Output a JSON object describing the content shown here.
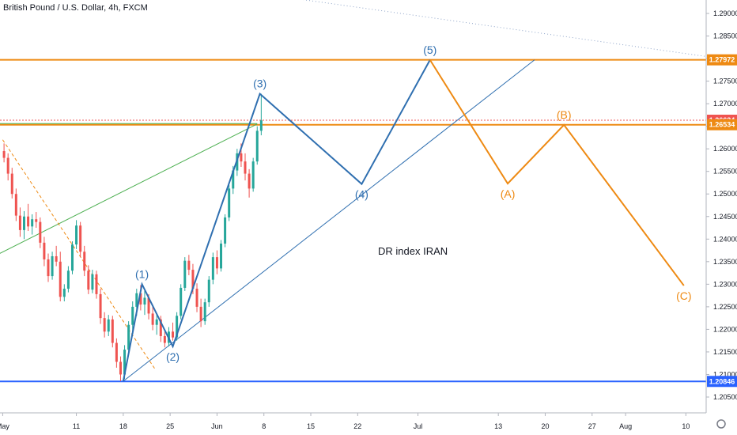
{
  "header": {
    "title": "British Pound / U.S. Dollar, 4h, FXCM"
  },
  "watermark_text": "DR index IRAN",
  "colors": {
    "up": "#26a69a",
    "down": "#ef5350",
    "blue": "#2f6fb0",
    "orange": "#ee8a13",
    "green": "#4caf50",
    "axis_text": "#131722",
    "grid": "#e0e3eb",
    "hline_blue": "#2962ff"
  },
  "chart_data": {
    "type": "line",
    "symbol": "GBPUSD",
    "timeframe": "4h",
    "ylim": [
      1.2025,
      1.293
    ],
    "y_ticks": [
      "1.29000",
      "1.28500",
      "1.28000",
      "1.27500",
      "1.27000",
      "1.26500",
      "1.26000",
      "1.25500",
      "1.25000",
      "1.24500",
      "1.24000",
      "1.23500",
      "1.23000",
      "1.22500",
      "1.22000",
      "1.21500",
      "1.21000",
      "1.20500"
    ],
    "x_ticks": [
      {
        "label": "May",
        "day": 0
      },
      {
        "label": "11",
        "day": 11
      },
      {
        "label": "18",
        "day": 18
      },
      {
        "label": "25",
        "day": 25
      },
      {
        "label": "Jun",
        "day": 32
      },
      {
        "label": "8",
        "day": 39
      },
      {
        "label": "15",
        "day": 46
      },
      {
        "label": "22",
        "day": 53
      },
      {
        "label": "Jul",
        "day": 62
      },
      {
        "label": "13",
        "day": 74
      },
      {
        "label": "20",
        "day": 81
      },
      {
        "label": "27",
        "day": 88
      },
      {
        "label": "Aug",
        "day": 93
      },
      {
        "label": "10",
        "day": 102
      }
    ],
    "price_tags": [
      {
        "label": "1.27972",
        "value": 1.27972,
        "style": "orange-fill"
      },
      {
        "label": "1.26634",
        "value": 1.26634,
        "style": "red-fill"
      },
      {
        "label": "1.26534",
        "value": 1.26534,
        "style": "orange-fill"
      },
      {
        "label": "1.20846",
        "value": 1.20846,
        "style": "blue-fill"
      }
    ],
    "horizontal_lines": [
      {
        "value": 1.27972,
        "color": "orange"
      },
      {
        "value": 1.26534,
        "color": "orange"
      },
      {
        "value": 1.20846,
        "color": "blue"
      }
    ],
    "elliott_impulse": {
      "color": "blue",
      "points": [
        {
          "label": "",
          "day": 18,
          "value": 1.2085
        },
        {
          "label": "(1)",
          "day": 20.8,
          "value": 1.23
        },
        {
          "label": "(2)",
          "day": 25.4,
          "value": 1.2162
        },
        {
          "label": "(3)",
          "day": 38.4,
          "value": 1.2722
        },
        {
          "label": "(4)",
          "day": 53.6,
          "value": 1.2522
        },
        {
          "label": "(5)",
          "day": 63.8,
          "value": 1.2797
        }
      ]
    },
    "elliott_correction": {
      "color": "orange",
      "points": [
        {
          "label": "",
          "day": 63.8,
          "value": 1.2797
        },
        {
          "label": "(A)",
          "day": 75.4,
          "value": 1.2523
        },
        {
          "label": "(B)",
          "day": 83.8,
          "value": 1.2653
        },
        {
          "label": "(C)",
          "day": 101.7,
          "value": 1.2297
        }
      ]
    },
    "trendlines": [
      {
        "color": "blue",
        "style": "solid",
        "from": {
          "day": 18,
          "value": 1.2085
        },
        "to": {
          "day": 79.4,
          "value": 1.2797
        }
      },
      {
        "color": "green",
        "style": "solid",
        "from": {
          "day": -1,
          "value": 1.2364
        },
        "to": {
          "day": 38.0,
          "value": 1.2655
        }
      },
      {
        "color": "green",
        "style": "solid",
        "from": {
          "day": -1,
          "value": 1.2656
        },
        "to": {
          "day": 38.0,
          "value": 1.2656
        }
      },
      {
        "color": "orange",
        "style": "dashed",
        "from": {
          "day": 0,
          "value": 1.262
        },
        "to": {
          "day": 22.7,
          "value": 1.2113
        }
      },
      {
        "color": "blue",
        "style": "dotted",
        "from": {
          "day": 30.8,
          "value": 1.296
        },
        "to": {
          "day": 108.7,
          "value": 1.2797
        }
      }
    ],
    "series": [
      {
        "name": "",
        "candles": [
          {
            "day": 0.2,
            "open": 1.2595,
            "high": 1.2612,
            "low": 1.257,
            "close": 1.258
          },
          {
            "day": 0.8,
            "open": 1.258,
            "high": 1.259,
            "low": 1.253,
            "close": 1.2545
          },
          {
            "day": 1.4,
            "open": 1.2545,
            "high": 1.2558,
            "low": 1.249,
            "close": 1.25
          },
          {
            "day": 2.0,
            "open": 1.25,
            "high": 1.2512,
            "low": 1.244,
            "close": 1.2452
          },
          {
            "day": 2.6,
            "open": 1.2452,
            "high": 1.247,
            "low": 1.2405,
            "close": 1.242
          },
          {
            "day": 3.2,
            "open": 1.242,
            "high": 1.2462,
            "low": 1.24,
            "close": 1.245
          },
          {
            "day": 3.8,
            "open": 1.245,
            "high": 1.2478,
            "low": 1.2418,
            "close": 1.2428
          },
          {
            "day": 4.4,
            "open": 1.2428,
            "high": 1.2455,
            "low": 1.241,
            "close": 1.2444
          },
          {
            "day": 5.0,
            "open": 1.2444,
            "high": 1.246,
            "low": 1.2425,
            "close": 1.2438
          },
          {
            "day": 5.6,
            "open": 1.2438,
            "high": 1.2448,
            "low": 1.238,
            "close": 1.2392
          },
          {
            "day": 6.2,
            "open": 1.2392,
            "high": 1.2405,
            "low": 1.234,
            "close": 1.2355
          },
          {
            "day": 6.8,
            "open": 1.2355,
            "high": 1.2368,
            "low": 1.2305,
            "close": 1.2318
          },
          {
            "day": 7.4,
            "open": 1.2318,
            "high": 1.2372,
            "low": 1.231,
            "close": 1.2362
          },
          {
            "day": 8.0,
            "open": 1.2362,
            "high": 1.2385,
            "low": 1.234,
            "close": 1.235
          },
          {
            "day": 8.6,
            "open": 1.235,
            "high": 1.2372,
            "low": 1.2262,
            "close": 1.2272
          },
          {
            "day": 9.2,
            "open": 1.2272,
            "high": 1.23,
            "low": 1.2262,
            "close": 1.229
          },
          {
            "day": 9.8,
            "open": 1.229,
            "high": 1.234,
            "low": 1.2282,
            "close": 1.233
          },
          {
            "day": 10.4,
            "open": 1.233,
            "high": 1.2395,
            "low": 1.2322,
            "close": 1.2388
          },
          {
            "day": 11.0,
            "open": 1.2388,
            "high": 1.2442,
            "low": 1.2378,
            "close": 1.243
          },
          {
            "day": 11.6,
            "open": 1.243,
            "high": 1.2438,
            "low": 1.236,
            "close": 1.2372
          },
          {
            "day": 12.2,
            "open": 1.2372,
            "high": 1.2385,
            "low": 1.2318,
            "close": 1.233
          },
          {
            "day": 12.8,
            "open": 1.233,
            "high": 1.2342,
            "low": 1.2278,
            "close": 1.2288
          },
          {
            "day": 13.4,
            "open": 1.2288,
            "high": 1.2332,
            "low": 1.228,
            "close": 1.2322
          },
          {
            "day": 14.0,
            "open": 1.2322,
            "high": 1.233,
            "low": 1.2268,
            "close": 1.2278
          },
          {
            "day": 14.6,
            "open": 1.2278,
            "high": 1.229,
            "low": 1.2212,
            "close": 1.2225
          },
          {
            "day": 15.2,
            "open": 1.2225,
            "high": 1.2238,
            "low": 1.2182,
            "close": 1.2195
          },
          {
            "day": 15.8,
            "open": 1.2195,
            "high": 1.2232,
            "low": 1.2185,
            "close": 1.2222
          },
          {
            "day": 16.4,
            "open": 1.2222,
            "high": 1.223,
            "low": 1.216,
            "close": 1.217
          },
          {
            "day": 17.0,
            "open": 1.217,
            "high": 1.218,
            "low": 1.2115,
            "close": 1.2128
          },
          {
            "day": 17.6,
            "open": 1.2128,
            "high": 1.214,
            "low": 1.2085,
            "close": 1.21
          },
          {
            "day": 18.2,
            "open": 1.21,
            "high": 1.2165,
            "low": 1.209,
            "close": 1.2155
          },
          {
            "day": 18.8,
            "open": 1.2155,
            "high": 1.2218,
            "low": 1.2145,
            "close": 1.221
          },
          {
            "day": 19.4,
            "open": 1.221,
            "high": 1.2262,
            "low": 1.2195,
            "close": 1.225
          },
          {
            "day": 20.0,
            "open": 1.225,
            "high": 1.229,
            "low": 1.223,
            "close": 1.228
          },
          {
            "day": 20.6,
            "open": 1.228,
            "high": 1.2298,
            "low": 1.2242,
            "close": 1.2255
          },
          {
            "day": 21.2,
            "open": 1.2255,
            "high": 1.2285,
            "low": 1.2232,
            "close": 1.227
          },
          {
            "day": 21.8,
            "open": 1.227,
            "high": 1.2278,
            "low": 1.2222,
            "close": 1.2235
          },
          {
            "day": 22.4,
            "open": 1.2235,
            "high": 1.225,
            "low": 1.2198,
            "close": 1.221
          },
          {
            "day": 23.0,
            "open": 1.221,
            "high": 1.2232,
            "low": 1.2188,
            "close": 1.2222
          },
          {
            "day": 23.6,
            "open": 1.2222,
            "high": 1.223,
            "low": 1.2172,
            "close": 1.2185
          },
          {
            "day": 24.2,
            "open": 1.2185,
            "high": 1.2195,
            "low": 1.216,
            "close": 1.217
          },
          {
            "day": 24.8,
            "open": 1.217,
            "high": 1.2205,
            "low": 1.2162,
            "close": 1.2195
          },
          {
            "day": 25.4,
            "open": 1.2195,
            "high": 1.2215,
            "low": 1.2175,
            "close": 1.2182
          },
          {
            "day": 26.0,
            "open": 1.2182,
            "high": 1.2238,
            "low": 1.2175,
            "close": 1.223
          },
          {
            "day": 26.6,
            "open": 1.223,
            "high": 1.23,
            "low": 1.2222,
            "close": 1.2292
          },
          {
            "day": 27.2,
            "open": 1.2292,
            "high": 1.236,
            "low": 1.2285,
            "close": 1.2352
          },
          {
            "day": 27.8,
            "open": 1.2352,
            "high": 1.2365,
            "low": 1.232,
            "close": 1.2332
          },
          {
            "day": 28.4,
            "open": 1.2332,
            "high": 1.2345,
            "low": 1.2278,
            "close": 1.229
          },
          {
            "day": 29.0,
            "open": 1.229,
            "high": 1.2302,
            "low": 1.2238,
            "close": 1.225
          },
          {
            "day": 29.6,
            "open": 1.225,
            "high": 1.2268,
            "low": 1.2205,
            "close": 1.2218
          },
          {
            "day": 30.2,
            "open": 1.2218,
            "high": 1.2268,
            "low": 1.221,
            "close": 1.226
          },
          {
            "day": 30.8,
            "open": 1.226,
            "high": 1.2318,
            "low": 1.225,
            "close": 1.231
          },
          {
            "day": 31.4,
            "open": 1.231,
            "high": 1.237,
            "low": 1.23,
            "close": 1.236
          },
          {
            "day": 32.0,
            "open": 1.236,
            "high": 1.2375,
            "low": 1.2322,
            "close": 1.2335
          },
          {
            "day": 32.6,
            "open": 1.2335,
            "high": 1.2398,
            "low": 1.2328,
            "close": 1.239
          },
          {
            "day": 33.2,
            "open": 1.239,
            "high": 1.2455,
            "low": 1.2382,
            "close": 1.2448
          },
          {
            "day": 33.8,
            "open": 1.2448,
            "high": 1.252,
            "low": 1.244,
            "close": 1.2512
          },
          {
            "day": 34.4,
            "open": 1.2512,
            "high": 1.2562,
            "low": 1.25,
            "close": 1.2552
          },
          {
            "day": 35.0,
            "open": 1.2552,
            "high": 1.26,
            "low": 1.254,
            "close": 1.259
          },
          {
            "day": 35.6,
            "open": 1.259,
            "high": 1.2612,
            "low": 1.256,
            "close": 1.2572
          },
          {
            "day": 36.2,
            "open": 1.2572,
            "high": 1.259,
            "low": 1.253,
            "close": 1.2545
          },
          {
            "day": 36.8,
            "open": 1.2545,
            "high": 1.2555,
            "low": 1.2492,
            "close": 1.2512
          },
          {
            "day": 37.4,
            "open": 1.2512,
            "high": 1.258,
            "low": 1.2505,
            "close": 1.2572
          },
          {
            "day": 38.0,
            "open": 1.2572,
            "high": 1.265,
            "low": 1.2565,
            "close": 1.264
          },
          {
            "day": 38.6,
            "open": 1.264,
            "high": 1.2722,
            "low": 1.263,
            "close": 1.2663
          }
        ]
      }
    ]
  }
}
